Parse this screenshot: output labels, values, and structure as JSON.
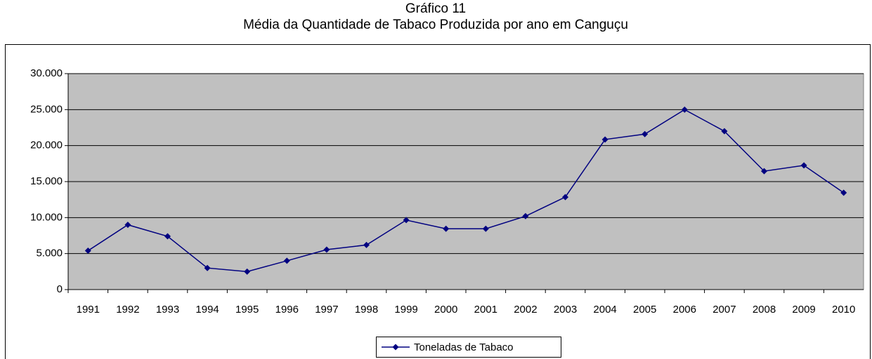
{
  "chart_data": {
    "type": "line",
    "title": "Gráfico 11",
    "subtitle": "Média da Quantidade de Tabaco Produzida por ano em Canguçu",
    "categories": [
      "1991",
      "1992",
      "1993",
      "1994",
      "1995",
      "1996",
      "1997",
      "1998",
      "1999",
      "2000",
      "2001",
      "2002",
      "2003",
      "2004",
      "2005",
      "2006",
      "2007",
      "2008",
      "2009",
      "2010"
    ],
    "series": [
      {
        "name": "Toneladas de Tabaco",
        "color": "#000080",
        "values": [
          5400,
          9000,
          7400,
          3000,
          2500,
          4000,
          5550,
          6200,
          9650,
          8450,
          8450,
          10200,
          12850,
          20850,
          21600,
          25000,
          22000,
          16450,
          17250,
          13450
        ]
      }
    ],
    "ylim": [
      0,
      30000
    ],
    "yticks": [
      0,
      {
        "value": 5000,
        "label": "5.000"
      },
      {
        "value": 10000,
        "label": "10.000"
      },
      {
        "value": 15000,
        "label": "15.000"
      },
      {
        "value": 20000,
        "label": "20.000"
      },
      {
        "value": 25000,
        "label": "25.000"
      },
      {
        "value": 30000,
        "label": "30.000"
      }
    ],
    "grid": true,
    "plot_background": "#c0c0c0",
    "legend": "bottom"
  }
}
